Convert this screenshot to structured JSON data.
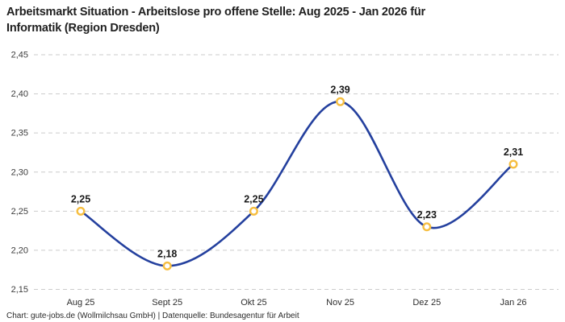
{
  "header": {
    "title_lines": [
      "Arbeitsmarkt Situation - Arbeitslose pro offene Stelle: Aug 2025 - Jan 2026 für",
      "Informatik (Region Dresden)"
    ]
  },
  "footer": {
    "attribution": "Chart: gute-jobs.de (Wollmilchsau GmbH) | Datenquelle: Bundesagentur für Arbeit"
  },
  "chart_data": {
    "type": "line",
    "title": "Arbeitsmarkt Situation - Arbeitslose pro offene Stelle: Aug 2025 - Jan 2026 für Informatik (Region Dresden)",
    "categories": [
      "Aug 25",
      "Sept 25",
      "Okt 25",
      "Nov 25",
      "Dez 25",
      "Jan 26"
    ],
    "values": [
      2.25,
      2.18,
      2.25,
      2.39,
      2.23,
      2.31
    ],
    "value_labels": [
      "2,25",
      "2,18",
      "2,25",
      "2,39",
      "2,23",
      "2,31"
    ],
    "xlabel": "",
    "ylabel": "",
    "ylim": [
      2.15,
      2.45
    ],
    "yticks": [
      2.15,
      2.2,
      2.25,
      2.3,
      2.35,
      2.4,
      2.45
    ],
    "ytick_labels": [
      "2,15",
      "2,20",
      "2,25",
      "2,30",
      "2,35",
      "2,40",
      "2,45"
    ],
    "grid": "horizontal-dashed",
    "legend": "none",
    "smooth": true,
    "colors": {
      "line": "#24409E",
      "marker_stroke": "#F6BE40",
      "marker_fill": "#FFFFFF",
      "gridline": "#CBCBCB",
      "tick_text": "#3C3C3C",
      "data_label": "#191919"
    }
  }
}
